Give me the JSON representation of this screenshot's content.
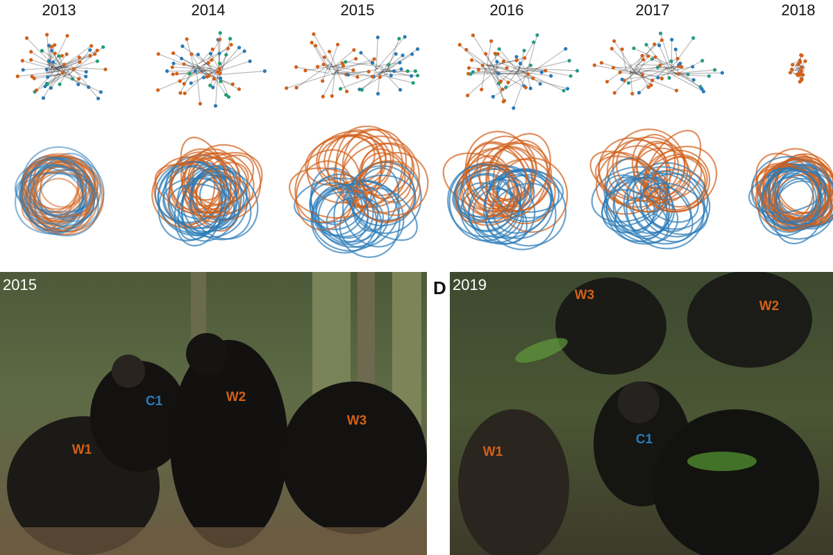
{
  "network_panels": {
    "years": [
      "2013",
      "2014",
      "2015",
      "2016",
      "2017",
      "2018"
    ]
  },
  "photos": [
    {
      "year": "2015",
      "labels": [
        {
          "text": "W1",
          "group": "orange"
        },
        {
          "text": "C1",
          "group": "blue"
        },
        {
          "text": "W2",
          "group": "orange"
        },
        {
          "text": "W3",
          "group": "orange"
        }
      ]
    },
    {
      "panel_letter": "D",
      "year": "2019",
      "labels": [
        {
          "text": "W3",
          "group": "orange"
        },
        {
          "text": "W2",
          "group": "orange"
        },
        {
          "text": "W1",
          "group": "orange"
        },
        {
          "text": "C1",
          "group": "blue"
        }
      ]
    }
  ]
}
